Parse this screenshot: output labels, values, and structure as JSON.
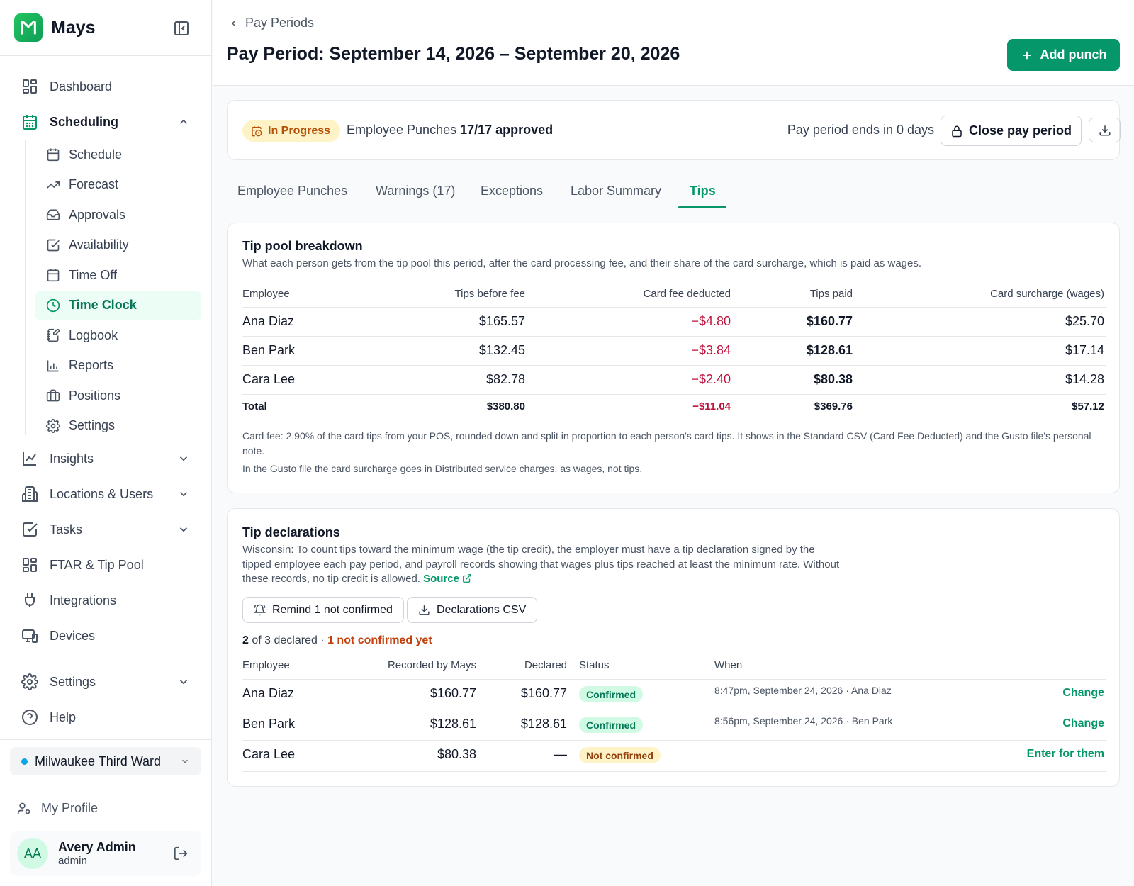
{
  "app": {
    "name": "Mays"
  },
  "sidebar": {
    "items": [
      {
        "label": "Dashboard",
        "icon": "dashboard-icon"
      },
      {
        "label": "Scheduling",
        "icon": "calendar-icon"
      },
      {
        "label": "Insights",
        "icon": "line-chart-icon"
      },
      {
        "label": "Locations & Users",
        "icon": "building-icon"
      },
      {
        "label": "Tasks",
        "icon": "checkbox-icon"
      },
      {
        "label": "FTAR & Tip Pool",
        "icon": "grid-icon"
      },
      {
        "label": "Integrations",
        "icon": "plug-icon"
      },
      {
        "label": "Devices",
        "icon": "devices-icon"
      },
      {
        "label": "Settings",
        "icon": "gear-icon"
      },
      {
        "label": "Help",
        "icon": "help-icon"
      }
    ],
    "scheduling_sub": [
      {
        "label": "Schedule"
      },
      {
        "label": "Forecast"
      },
      {
        "label": "Approvals"
      },
      {
        "label": "Availability"
      },
      {
        "label": "Time Off"
      },
      {
        "label": "Time Clock"
      },
      {
        "label": "Logbook"
      },
      {
        "label": "Reports"
      },
      {
        "label": "Positions"
      },
      {
        "label": "Settings"
      }
    ],
    "location": "Milwaukee Third Ward",
    "my_profile": "My Profile",
    "user": {
      "initials": "AA",
      "name": "Avery Admin",
      "role": "admin"
    }
  },
  "header": {
    "breadcrumb": "Pay Periods",
    "title": "Pay Period: September 14, 2026 – September 20, 2026",
    "add_button": "Add punch"
  },
  "status": {
    "badge": "In Progress",
    "punches_label": "Employee Punches",
    "punches_value": "17/17 approved",
    "ends_text": "Pay period ends in 0 days",
    "close_button": "Close pay period"
  },
  "tabs": [
    "Employee Punches",
    "Warnings (17)",
    "Exceptions",
    "Labor Summary",
    "Tips"
  ],
  "tip_pool": {
    "title": "Tip pool breakdown",
    "description": "What each person gets from the tip pool this period, after the card processing fee, and their share of the card surcharge, which is paid as wages.",
    "columns": [
      "Employee",
      "Tips before fee",
      "Card fee deducted",
      "Tips paid",
      "Card surcharge (wages)"
    ],
    "rows": [
      [
        "Ana Diaz",
        "$165.57",
        "−$4.80",
        "$160.77",
        "$25.70"
      ],
      [
        "Ben Park",
        "$132.45",
        "−$3.84",
        "$128.61",
        "$17.14"
      ],
      [
        "Cara Lee",
        "$82.78",
        "−$2.40",
        "$80.38",
        "$14.28"
      ]
    ],
    "total": [
      "Total",
      "$380.80",
      "−$11.04",
      "$369.76",
      "$57.12"
    ],
    "note1": "Card fee: 2.90% of the card tips from your POS, rounded down and split in proportion to each person's card tips. It shows in the Standard CSV (Card Fee Deducted) and the Gusto file's personal note.",
    "note2": "In the Gusto file the card surcharge goes in Distributed service charges, as wages, not tips."
  },
  "declarations": {
    "title": "Tip declarations",
    "description": "Wisconsin: To count tips toward the minimum wage (the tip credit), the employer must have a tip declaration signed by the tipped employee each pay period, and payroll records showing that wages plus tips reached at least the minimum rate. Without these records, no tip credit is allowed.",
    "source_link": "Source",
    "remind_button": "Remind 1 not confirmed",
    "csv_button": "Declarations CSV",
    "count_declared": "2",
    "count_rest": " of 3 declared · ",
    "count_warning": "1 not confirmed yet",
    "columns": [
      "Employee",
      "Recorded by Mays",
      "Declared",
      "Status",
      "When"
    ],
    "rows": [
      {
        "employee": "Ana Diaz",
        "recorded": "$160.77",
        "declared": "$160.77",
        "status": "Confirmed",
        "when": "8:47pm, September 24, 2026 · Ana Diaz",
        "action": "Change"
      },
      {
        "employee": "Ben Park",
        "recorded": "$128.61",
        "declared": "$128.61",
        "status": "Confirmed",
        "when": "8:56pm, September 24, 2026 · Ben Park",
        "action": "Change"
      },
      {
        "employee": "Cara Lee",
        "recorded": "$80.38",
        "declared": "—",
        "status": "Not confirmed",
        "when": "—",
        "action": "Enter for them"
      }
    ]
  }
}
